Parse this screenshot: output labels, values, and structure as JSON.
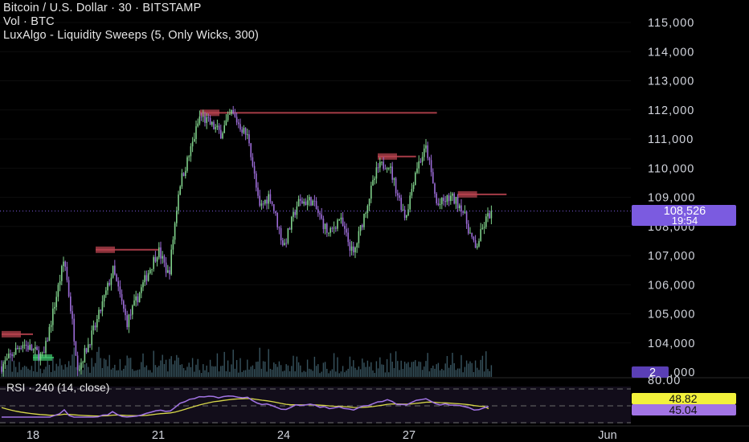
{
  "header": {
    "title": "Bitcoin / U.S. Dollar · 30 · BITSTAMP",
    "volume_label": "Vol · BTC",
    "indicator_label": "LuxAlgo - Liquidity Sweeps (5, Only Wicks, 300)"
  },
  "rsi_panel": {
    "title": "RSI · 240 (14, close)",
    "value_a": "48.82",
    "value_b": "45.04"
  },
  "price_axis": {
    "ticks": [
      "115,000",
      "114,000",
      "113,000",
      "112,000",
      "111,000",
      "110,000",
      "109,000",
      "108,000",
      "107,000",
      "106,000",
      "105,000",
      "104,000",
      "103,000"
    ],
    "rsi_ticks": [
      "80.00"
    ]
  },
  "current_price": {
    "price": "108,526",
    "countdown": "19:54",
    "volume_badge": "2"
  },
  "time_axis": {
    "labels": [
      "18",
      "21",
      "24",
      "27",
      "Jun"
    ]
  },
  "colors": {
    "background": "#000000",
    "bull": "#7fd08a",
    "bear": "#9b6bd6",
    "sweep_bear": "#b8434f",
    "sweep_bull": "#3cbf6a",
    "price_badge": "#7b5be0",
    "rsi_line": "#a274e4",
    "rsi_ma": "#d8d84a",
    "rsi_badge_a": "#f2f13b",
    "rsi_badge_b": "#a274e4",
    "axis_text": "#d1d4dc",
    "volume": "#4a6f7d"
  },
  "chart_data": {
    "type": "candlestick",
    "title": "Bitcoin / U.S. Dollar · 30 · BITSTAMP",
    "x_label": "",
    "y_label": "",
    "y_range": [
      103000,
      115000
    ],
    "last_price": 108526,
    "price_path": [
      [
        "2025-05-17T12:00",
        103200
      ],
      [
        "2025-05-18T00:00",
        104000
      ],
      [
        "2025-05-18T12:00",
        103500
      ],
      [
        "2025-05-19T00:00",
        106900
      ],
      [
        "2025-05-19T08:00",
        103100
      ],
      [
        "2025-05-19T18:00",
        104600
      ],
      [
        "2025-05-20T04:00",
        106500
      ],
      [
        "2025-05-20T12:00",
        104700
      ],
      [
        "2025-05-21T00:00",
        106400
      ],
      [
        "2025-05-21T06:00",
        107200
      ],
      [
        "2025-05-21T12:00",
        106300
      ],
      [
        "2025-05-21T18:00",
        109400
      ],
      [
        "2025-05-22T00:00",
        110500
      ],
      [
        "2025-05-22T06:00",
        111800
      ],
      [
        "2025-05-22T18:00",
        111200
      ],
      [
        "2025-05-23T00:00",
        111900
      ],
      [
        "2025-05-23T10:00",
        111000
      ],
      [
        "2025-05-23T16:00",
        108600
      ],
      [
        "2025-05-23T22:00",
        109100
      ],
      [
        "2025-05-24T06:00",
        107300
      ],
      [
        "2025-05-24T14:00",
        108800
      ],
      [
        "2025-05-24T22:00",
        108900
      ],
      [
        "2025-05-25T08:00",
        107700
      ],
      [
        "2025-05-25T14:00",
        108300
      ],
      [
        "2025-05-25T22:00",
        107000
      ],
      [
        "2025-05-26T06:00",
        108800
      ],
      [
        "2025-05-26T12:00",
        110000
      ],
      [
        "2025-05-26T18:00",
        110200
      ],
      [
        "2025-05-27T00:00",
        109000
      ],
      [
        "2025-05-27T04:00",
        108300
      ],
      [
        "2025-05-27T10:00",
        110000
      ],
      [
        "2025-05-27T16:00",
        110700
      ],
      [
        "2025-05-27T22:00",
        108700
      ],
      [
        "2025-05-28T06:00",
        109000
      ],
      [
        "2025-05-28T12:00",
        108700
      ],
      [
        "2025-05-28T20:00",
        107200
      ],
      [
        "2025-05-29T02:00",
        108200
      ],
      [
        "2025-05-29T06:00",
        108600
      ]
    ],
    "liquidity_sweep_levels": [
      {
        "price": 111900,
        "from": "2025-05-22T06:00",
        "to": "2025-05-27T22:00",
        "type": "bearish"
      },
      {
        "price": 110400,
        "from": "2025-05-26T12:00",
        "to": "2025-05-27T10:00",
        "type": "bearish"
      },
      {
        "price": 109100,
        "from": "2025-05-28T10:00",
        "to": "2025-05-29T14:00",
        "type": "bearish"
      },
      {
        "price": 107200,
        "from": "2025-05-19T18:00",
        "to": "2025-05-21T06:00",
        "type": "bearish"
      },
      {
        "price": 104300,
        "from": "2025-05-17T12:00",
        "to": "2025-05-18T06:00",
        "type": "bearish"
      },
      {
        "price": 103500,
        "from": "2025-05-18T06:00",
        "to": "2025-05-18T18:00",
        "type": "bullish"
      }
    ],
    "rsi": {
      "period": 14,
      "timeframe": "240",
      "rsi_value": 48.82,
      "ma_value": 45.04,
      "level": 80.0
    }
  }
}
